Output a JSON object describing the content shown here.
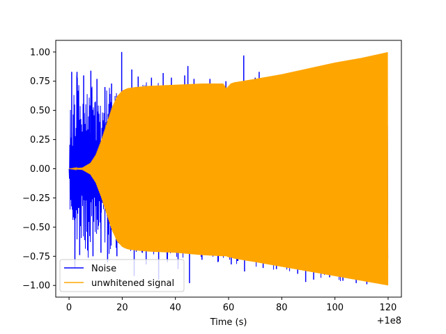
{
  "chart_data": {
    "type": "line",
    "title": "",
    "xlabel": "Time (s)",
    "ylabel": "",
    "x_offset_label": "+1e8",
    "xlim": [
      -5,
      125
    ],
    "ylim": [
      -1.1,
      1.1
    ],
    "x_ticks": [
      0,
      20,
      40,
      60,
      80,
      100,
      120
    ],
    "x_tick_labels": [
      "0",
      "20",
      "40",
      "60",
      "80",
      "100",
      "120"
    ],
    "y_ticks": [
      1.0,
      0.75,
      0.5,
      0.25,
      0.0,
      -0.25,
      -0.5,
      -0.75,
      -1.0
    ],
    "y_tick_labels": [
      "1.00",
      "0.75",
      "0.50",
      "0.25",
      "0.00",
      "−0.25",
      "−0.50",
      "−0.75",
      "−1.00"
    ],
    "grid": false,
    "legend_position": "lower-left",
    "series": [
      {
        "name": "Noise",
        "color": "#0000ff",
        "kind": "oscillation",
        "x_range": [
          0,
          120
        ],
        "envelope_x": [
          0,
          0.5,
          1,
          2,
          3,
          5,
          7,
          9,
          12,
          15,
          17,
          19,
          21,
          24,
          27,
          30,
          35,
          40,
          45,
          50,
          55,
          60,
          65,
          70,
          75,
          80,
          85,
          90,
          95,
          100,
          105,
          110,
          115,
          120
        ],
        "envelope_top": [
          0.0,
          0.62,
          0.45,
          0.75,
          0.83,
          0.62,
          0.85,
          0.72,
          0.6,
          0.74,
          0.68,
          0.62,
          0.7,
          0.72,
          0.74,
          0.75,
          0.73,
          0.72,
          0.74,
          0.72,
          0.73,
          0.74,
          0.75,
          0.75,
          0.78,
          0.8,
          0.83,
          0.85,
          0.88,
          0.9,
          0.93,
          0.95,
          0.97,
          1.0
        ],
        "envelope_bot": [
          0.0,
          -0.63,
          -0.45,
          -0.78,
          -0.8,
          -0.6,
          -0.82,
          -0.72,
          -0.62,
          -0.75,
          -0.7,
          -0.65,
          -0.72,
          -0.74,
          -0.75,
          -0.77,
          -0.78,
          -0.79,
          -0.8,
          -0.8,
          -0.81,
          -0.82,
          -0.83,
          -0.84,
          -0.86,
          -0.88,
          -0.9,
          -0.92,
          -0.94,
          -0.96,
          -0.97,
          -0.98,
          -0.99,
          -1.0
        ],
        "spikes": [
          [
            1,
            0.83
          ],
          [
            2.2,
            -0.85
          ],
          [
            3,
            0.83
          ],
          [
            4,
            -0.74
          ],
          [
            5.5,
            0.8
          ],
          [
            7,
            -0.7
          ],
          [
            8.2,
            0.84
          ],
          [
            9,
            -0.75
          ],
          [
            10.5,
            0.77
          ],
          [
            12,
            -0.72
          ],
          [
            13.5,
            0.7
          ],
          [
            14.5,
            -0.8
          ],
          [
            16,
            0.73
          ],
          [
            18,
            -0.75
          ],
          [
            19.8,
            1.0
          ],
          [
            21,
            -0.68
          ],
          [
            23.6,
            0.85
          ],
          [
            24.5,
            -0.92
          ],
          [
            26,
            0.79
          ],
          [
            29,
            -0.82
          ],
          [
            31,
            0.78
          ],
          [
            33.7,
            -0.95
          ],
          [
            35.4,
            0.82
          ],
          [
            37,
            -0.8
          ],
          [
            38.5,
            0.78
          ],
          [
            41,
            -0.86
          ],
          [
            43.5,
            0.8
          ],
          [
            44.7,
            0.88
          ],
          [
            45.3,
            -0.98
          ],
          [
            47,
            0.77
          ],
          [
            50,
            -0.78
          ],
          [
            53,
            0.77
          ],
          [
            56,
            -0.8
          ],
          [
            59,
            0.75
          ],
          [
            61,
            -0.82
          ],
          [
            65.7,
            0.97
          ],
          [
            66,
            -0.88
          ],
          [
            70,
            0.78
          ],
          [
            71.5,
            0.83
          ],
          [
            73,
            -0.85
          ],
          [
            78,
            -0.86
          ],
          [
            82,
            0.8
          ],
          [
            86,
            -0.9
          ],
          [
            89,
            -0.97
          ],
          [
            92,
            -0.95
          ],
          [
            95,
            0.85
          ],
          [
            98,
            -0.93
          ],
          [
            103,
            -0.96
          ],
          [
            108,
            -0.98
          ],
          [
            112,
            -0.99
          ]
        ]
      },
      {
        "name": "unwhitened signal",
        "color": "#ffa500",
        "kind": "chirp",
        "x_range": [
          0,
          120
        ],
        "envelope_x": [
          0,
          5,
          8,
          10,
          12,
          14,
          16,
          18,
          20,
          22,
          25,
          30,
          40,
          50,
          58,
          59.2,
          60,
          60.8,
          62,
          70,
          80,
          90,
          100,
          110,
          120
        ],
        "envelope_top": [
          0.0,
          0.01,
          0.05,
          0.12,
          0.24,
          0.38,
          0.52,
          0.62,
          0.67,
          0.69,
          0.7,
          0.71,
          0.72,
          0.73,
          0.73,
          0.69,
          0.71,
          0.73,
          0.74,
          0.77,
          0.81,
          0.86,
          0.91,
          0.95,
          1.0
        ],
        "envelope_bot": [
          0.0,
          -0.01,
          -0.05,
          -0.12,
          -0.24,
          -0.38,
          -0.52,
          -0.62,
          -0.67,
          -0.69,
          -0.7,
          -0.71,
          -0.72,
          -0.74,
          -0.75,
          -0.75,
          -0.76,
          -0.76,
          -0.77,
          -0.8,
          -0.84,
          -0.88,
          -0.92,
          -0.96,
          -1.0
        ]
      }
    ]
  }
}
